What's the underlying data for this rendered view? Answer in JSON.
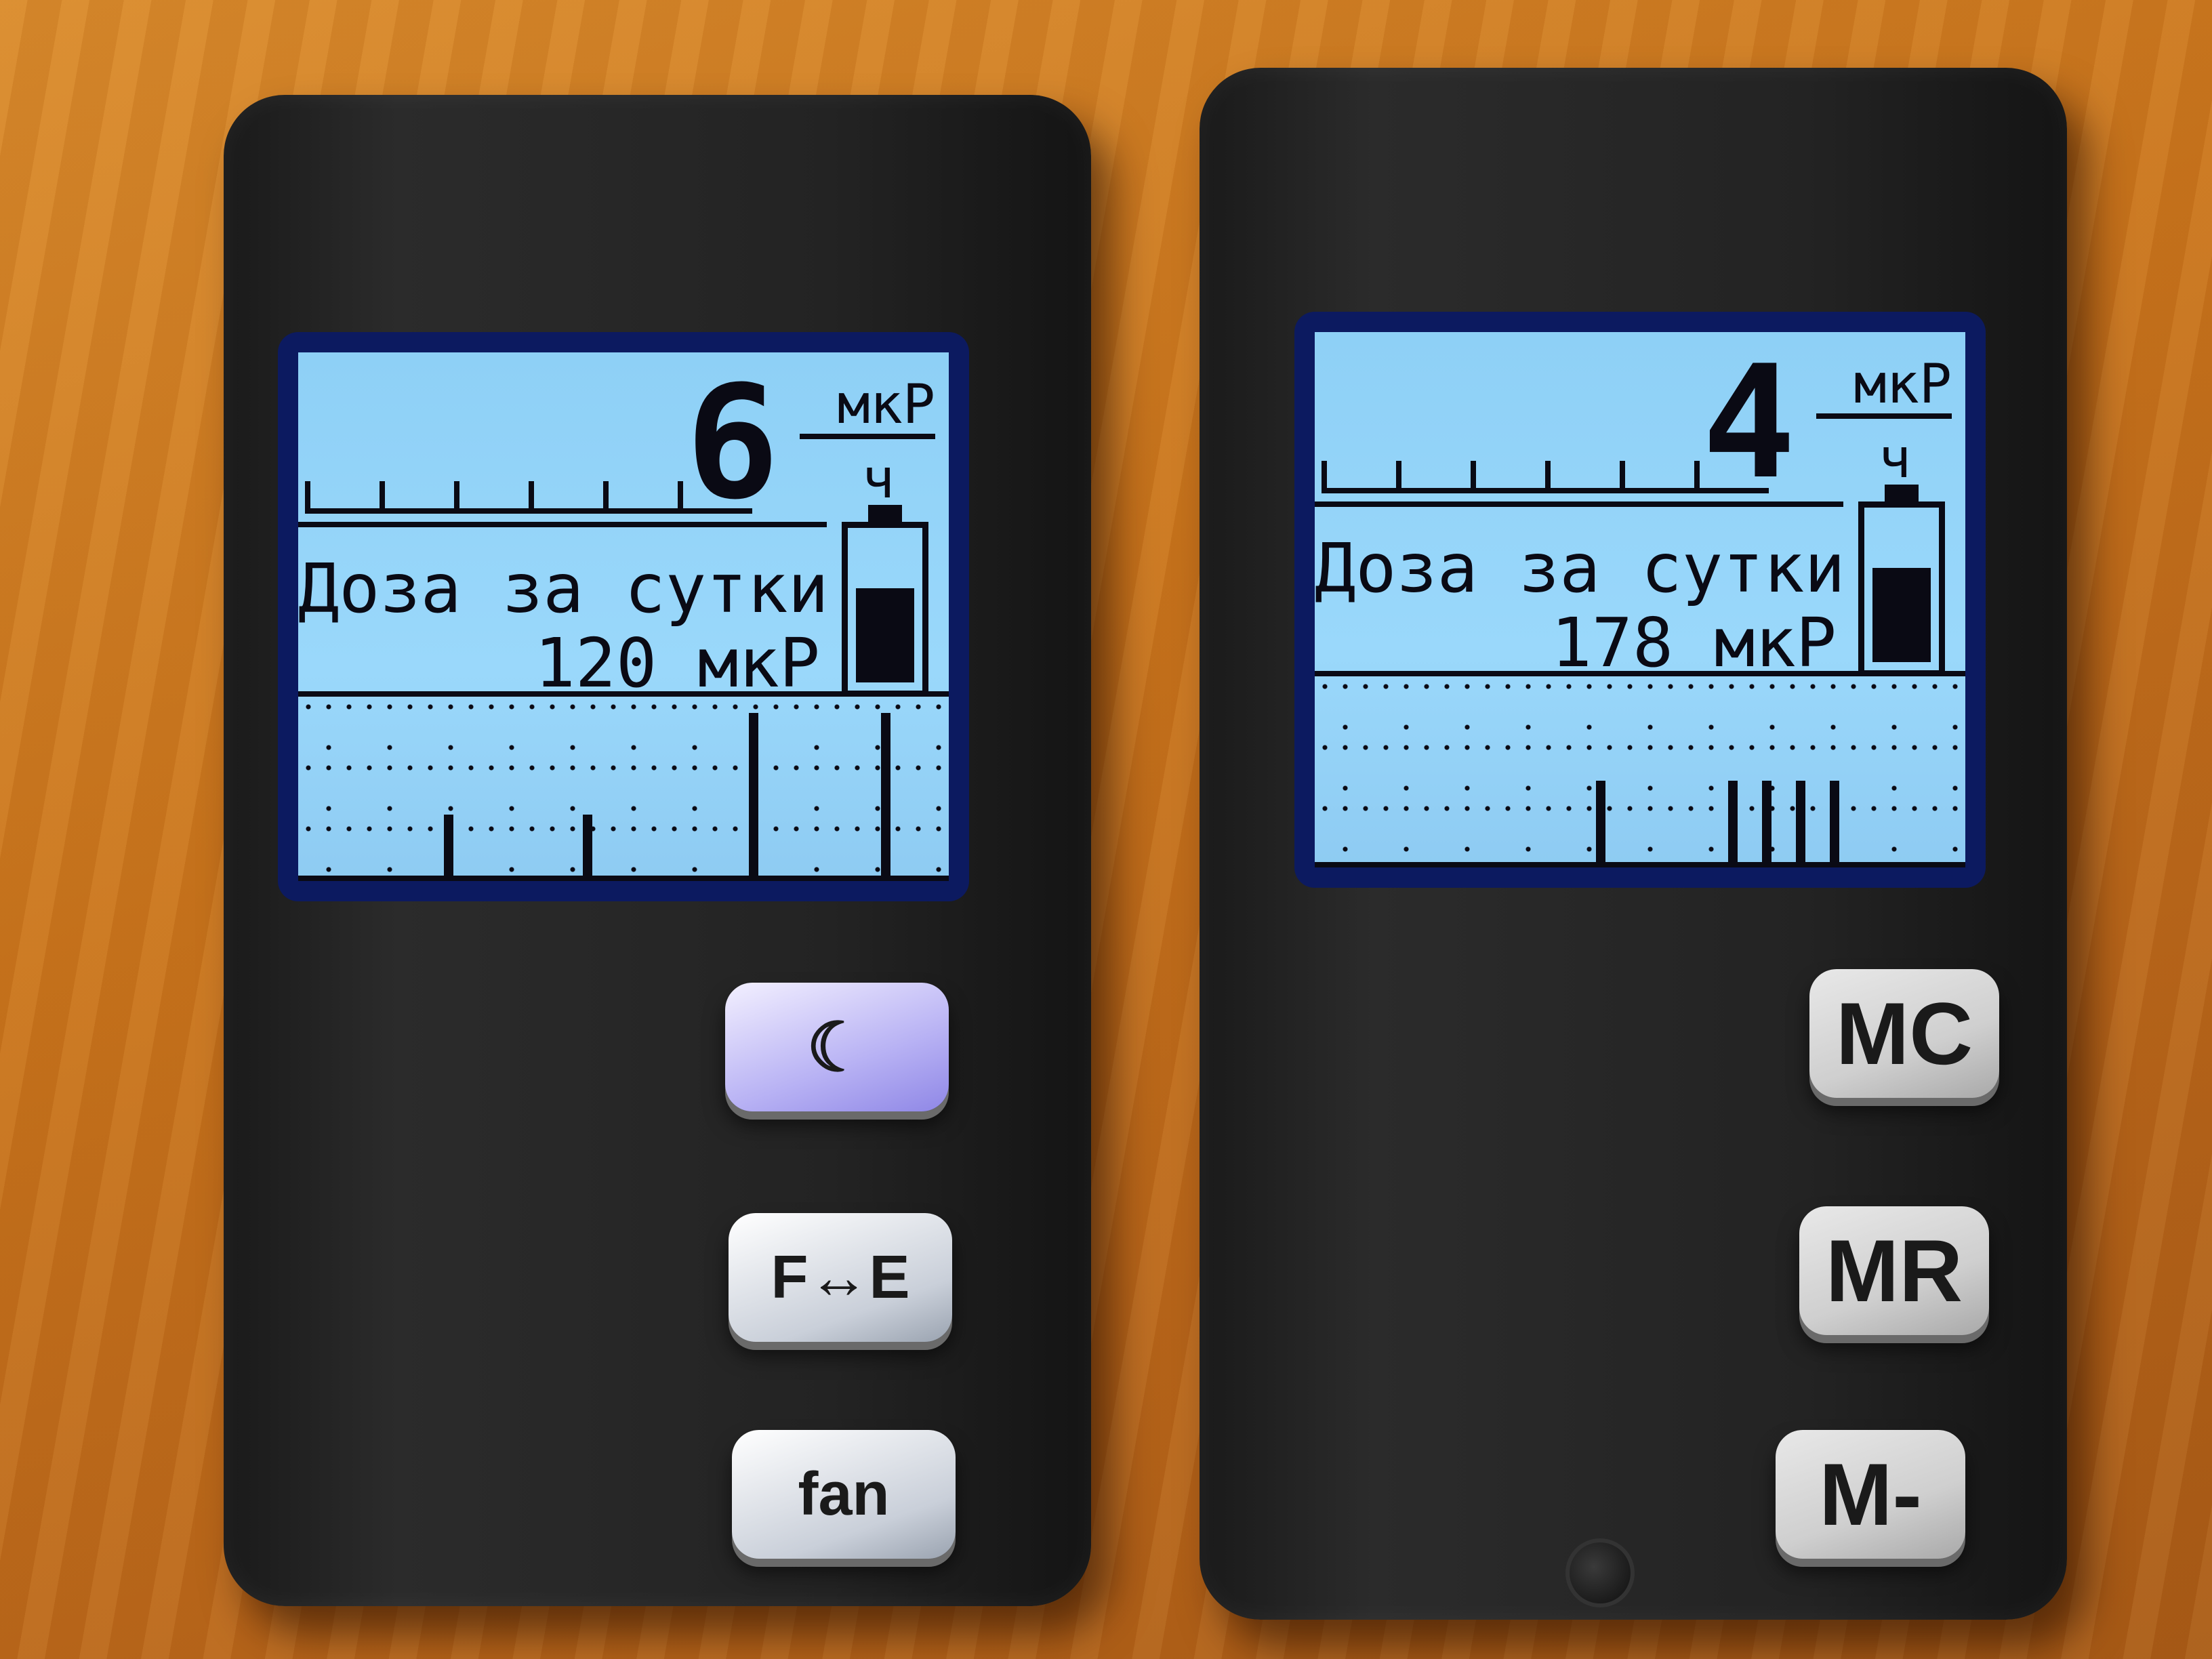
{
  "left_device": {
    "rate_value": "6",
    "rate_unit_top": "мкР",
    "rate_unit_bottom": "ч",
    "dose_label": "Доза за сутки",
    "dose_value": "120 мкР",
    "buttons": [
      {
        "label": "☾"
      },
      {
        "label": "F↔E"
      },
      {
        "label": "fan"
      }
    ]
  },
  "right_device": {
    "rate_value": "4",
    "rate_unit_top": "мкР",
    "rate_unit_bottom": "ч",
    "dose_label": "Доза за сутки",
    "dose_value": "178 мкР",
    "buttons": [
      {
        "label": "MC"
      },
      {
        "label": "MR"
      },
      {
        "label": "M-"
      }
    ]
  },
  "colors": {
    "lcd": "#9ad8fb",
    "body": "#232323",
    "table": "#c9741c"
  }
}
